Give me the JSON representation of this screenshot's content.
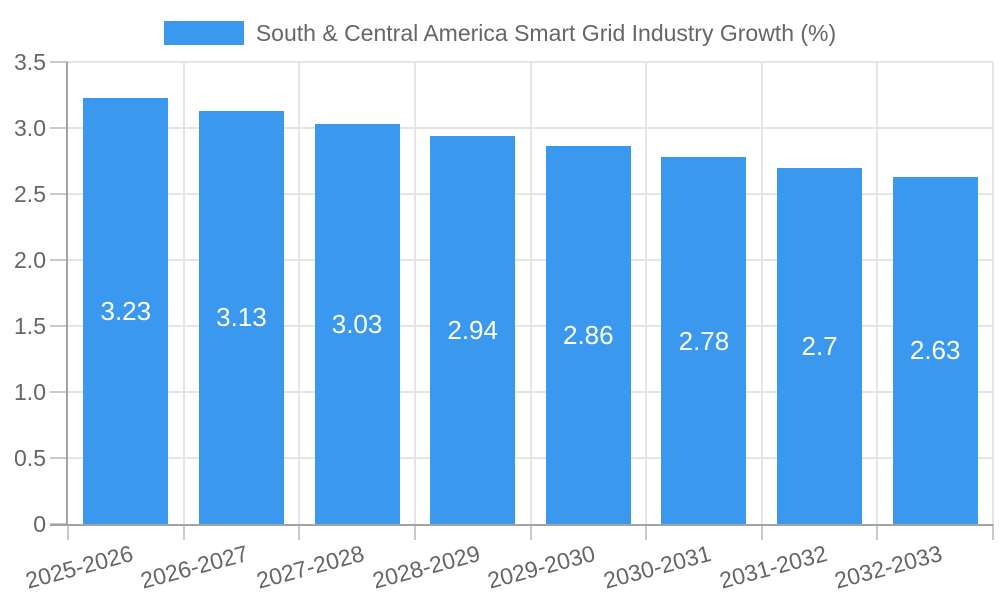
{
  "chart_data": {
    "type": "bar",
    "title": "South & Central America Smart Grid Industry Growth (%)",
    "categories": [
      "2025-2026",
      "2026-2027",
      "2027-2028",
      "2028-2029",
      "2029-2030",
      "2030-2031",
      "2031-2032",
      "2032-2033"
    ],
    "values": [
      3.23,
      3.13,
      3.03,
      2.94,
      2.86,
      2.78,
      2.7,
      2.63
    ],
    "value_labels": [
      "3.23",
      "3.13",
      "3.03",
      "2.94",
      "2.86",
      "2.78",
      "2.7",
      "2.63"
    ],
    "series": [
      {
        "name": "South & Central America Smart Grid Industry Growth (%)",
        "values": [
          3.23,
          3.13,
          3.03,
          2.94,
          2.86,
          2.78,
          2.7,
          2.63
        ]
      }
    ],
    "xlabel": "",
    "ylabel": "",
    "ylim": [
      0,
      3.5
    ],
    "y_ticks": [
      {
        "value": 0,
        "label": "0"
      },
      {
        "value": 0.5,
        "label": "0.5"
      },
      {
        "value": 1,
        "label": "1.0"
      },
      {
        "value": 1.5,
        "label": "1.5"
      },
      {
        "value": 2,
        "label": "2.0"
      },
      {
        "value": 2.5,
        "label": "2.5"
      },
      {
        "value": 3,
        "label": "3.0"
      },
      {
        "value": 3.5,
        "label": "3.5"
      }
    ],
    "grid": true,
    "legend_position": "top"
  },
  "colors": {
    "bar": "#3A99EE",
    "grid": "#E5E5E5",
    "axis": "#A3A3A3",
    "tick": "#C9C9C9",
    "text": "#666666",
    "value_label": "#FFFFFF",
    "background": "#FFFFFF"
  }
}
